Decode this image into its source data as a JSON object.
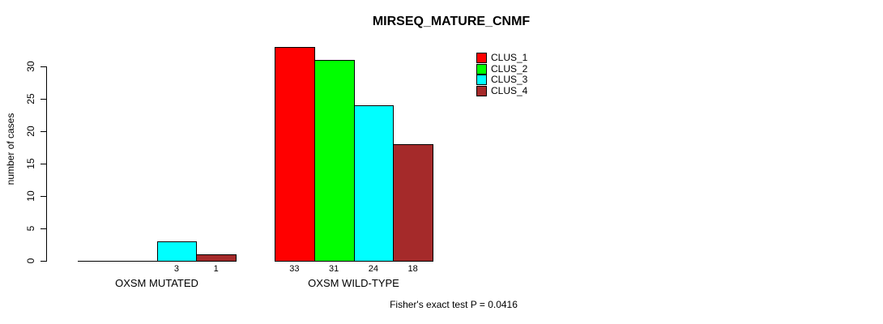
{
  "title": "MIRSEQ_MATURE_CNMF",
  "ylabel": "number of cases",
  "footer": "Fisher's exact test P = 0.0416",
  "chart_data": {
    "type": "bar",
    "title": "MIRSEQ_MATURE_CNMF",
    "ylabel": "number of cases",
    "xlabel": "",
    "categories": [
      "OXSM MUTATED",
      "OXSM WILD-TYPE"
    ],
    "series": [
      {
        "name": "CLUS_1",
        "color": "#ff0000",
        "values": [
          0,
          33
        ]
      },
      {
        "name": "CLUS_2",
        "color": "#00ff00",
        "values": [
          0,
          31
        ]
      },
      {
        "name": "CLUS_3",
        "color": "#00ffff",
        "values": [
          3,
          24
        ]
      },
      {
        "name": "CLUS_4",
        "color": "#a52a2a",
        "values": [
          1,
          18
        ]
      }
    ],
    "bar_value_labels": [
      [
        "",
        "",
        "3",
        "1"
      ],
      [
        "33",
        "31",
        "24",
        "18"
      ]
    ],
    "yticks": [
      0,
      5,
      10,
      15,
      20,
      25,
      30
    ],
    "ylim": [
      0,
      33
    ],
    "grid": false,
    "legend_position": "top-right",
    "annotation": "Fisher's exact test P = 0.0416"
  }
}
